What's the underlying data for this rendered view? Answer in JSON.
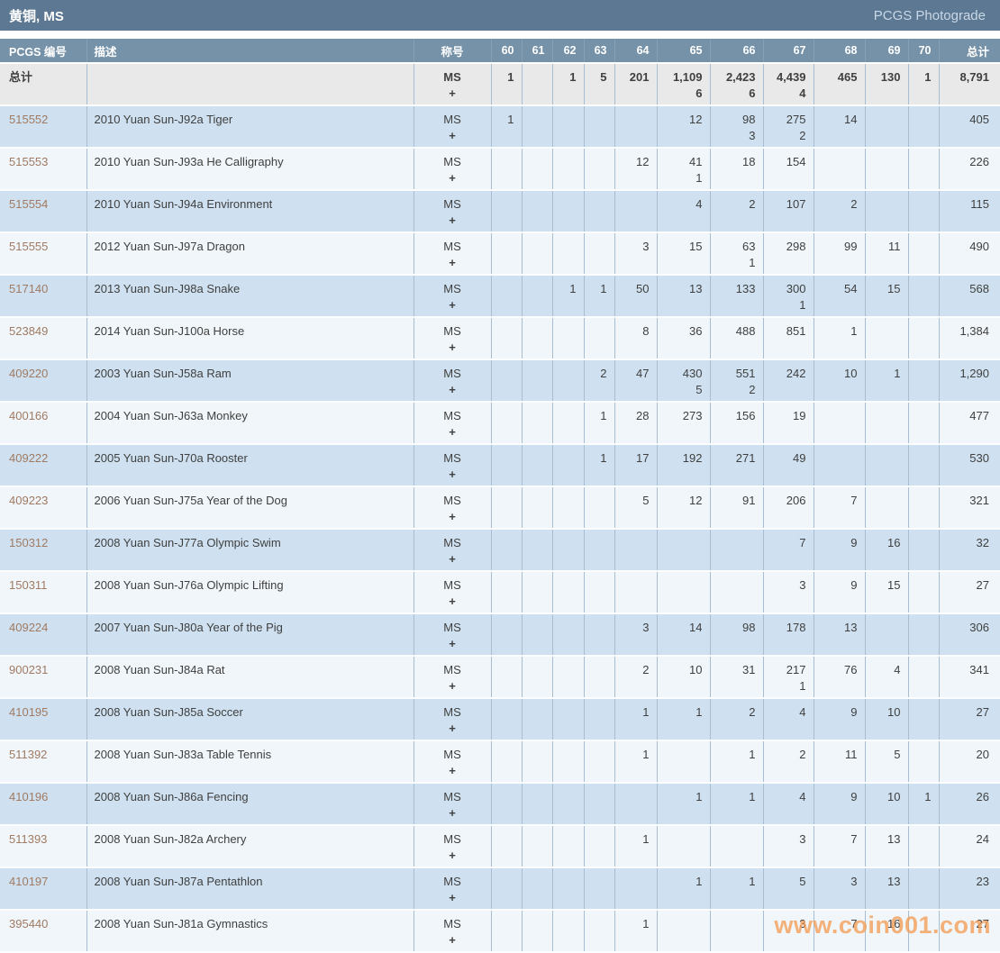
{
  "header": {
    "title": "黄铜, MS",
    "link_label": "PCGS Photograde"
  },
  "watermark": {
    "text": "www.coin001.com"
  },
  "colors": {
    "title_bar": "#5d7892",
    "column_header_bar": "#7692a8",
    "totals_row_bg": "#e9e9e9",
    "row_blue": "#cfe1f0",
    "row_light": "#f0f6fa",
    "grid_line": "#a8bed0",
    "pcgs_link": "#a07a62",
    "watermark": "#f39c54"
  },
  "table": {
    "columns": [
      "PCGS 编号",
      "描述",
      "称号",
      "60",
      "61",
      "62",
      "63",
      "64",
      "65",
      "66",
      "67",
      "68",
      "69",
      "70",
      "总计"
    ],
    "grade_keys": [
      "60",
      "61",
      "62",
      "63",
      "64",
      "65",
      "66",
      "67",
      "68",
      "69",
      "70"
    ],
    "designation": [
      "MS",
      "+"
    ],
    "totals": {
      "label": "总计",
      "grades": {
        "60": "1",
        "62": "1",
        "63": "5",
        "64": "201",
        "65": "1,109",
        "66": "2,423",
        "67": "4,439",
        "68": "465",
        "69": "130",
        "70": "1"
      },
      "plus": {
        "65": "6",
        "66": "6",
        "67": "4"
      },
      "total": "8,791"
    },
    "rows": [
      {
        "pcgs": "515552",
        "desc": "2010 Yuan Sun-J92a Tiger",
        "grades": {
          "60": "1",
          "65": "12",
          "66": "98",
          "67": "275",
          "68": "14"
        },
        "plus": {
          "66": "3",
          "67": "2"
        },
        "total": "405"
      },
      {
        "pcgs": "515553",
        "desc": "2010 Yuan Sun-J93a He Calligraphy",
        "grades": {
          "64": "12",
          "65": "41",
          "66": "18",
          "67": "154"
        },
        "plus": {
          "65": "1"
        },
        "total": "226"
      },
      {
        "pcgs": "515554",
        "desc": "2010 Yuan Sun-J94a Environment",
        "grades": {
          "65": "4",
          "66": "2",
          "67": "107",
          "68": "2"
        },
        "plus": {},
        "total": "115"
      },
      {
        "pcgs": "515555",
        "desc": "2012 Yuan Sun-J97a Dragon",
        "grades": {
          "64": "3",
          "65": "15",
          "66": "63",
          "67": "298",
          "68": "99",
          "69": "11"
        },
        "plus": {
          "66": "1"
        },
        "total": "490"
      },
      {
        "pcgs": "517140",
        "desc": "2013 Yuan Sun-J98a Snake",
        "grades": {
          "62": "1",
          "63": "1",
          "64": "50",
          "65": "13",
          "66": "133",
          "67": "300",
          "68": "54",
          "69": "15"
        },
        "plus": {
          "67": "1"
        },
        "total": "568"
      },
      {
        "pcgs": "523849",
        "desc": "2014 Yuan Sun-J100a Horse",
        "grades": {
          "64": "8",
          "65": "36",
          "66": "488",
          "67": "851",
          "68": "1"
        },
        "plus": {},
        "total": "1,384"
      },
      {
        "pcgs": "409220",
        "desc": "2003 Yuan Sun-J58a Ram",
        "grades": {
          "63": "2",
          "64": "47",
          "65": "430",
          "66": "551",
          "67": "242",
          "68": "10",
          "69": "1"
        },
        "plus": {
          "65": "5",
          "66": "2"
        },
        "total": "1,290"
      },
      {
        "pcgs": "400166",
        "desc": "2004 Yuan Sun-J63a Monkey",
        "grades": {
          "63": "1",
          "64": "28",
          "65": "273",
          "66": "156",
          "67": "19"
        },
        "plus": {},
        "total": "477"
      },
      {
        "pcgs": "409222",
        "desc": "2005 Yuan Sun-J70a Rooster",
        "grades": {
          "63": "1",
          "64": "17",
          "65": "192",
          "66": "271",
          "67": "49"
        },
        "plus": {},
        "total": "530"
      },
      {
        "pcgs": "409223",
        "desc": "2006 Yuan Sun-J75a Year of the Dog",
        "grades": {
          "64": "5",
          "65": "12",
          "66": "91",
          "67": "206",
          "68": "7"
        },
        "plus": {},
        "total": "321"
      },
      {
        "pcgs": "150312",
        "desc": "2008 Yuan Sun-J77a Olympic Swim",
        "grades": {
          "67": "7",
          "68": "9",
          "69": "16"
        },
        "plus": {},
        "total": "32"
      },
      {
        "pcgs": "150311",
        "desc": "2008 Yuan Sun-J76a Olympic Lifting",
        "grades": {
          "67": "3",
          "68": "9",
          "69": "15"
        },
        "plus": {},
        "total": "27"
      },
      {
        "pcgs": "409224",
        "desc": "2007 Yuan Sun-J80a Year of the Pig",
        "grades": {
          "64": "3",
          "65": "14",
          "66": "98",
          "67": "178",
          "68": "13"
        },
        "plus": {},
        "total": "306"
      },
      {
        "pcgs": "900231",
        "desc": "2008 Yuan Sun-J84a Rat",
        "grades": {
          "64": "2",
          "65": "10",
          "66": "31",
          "67": "217",
          "68": "76",
          "69": "4"
        },
        "plus": {
          "67": "1"
        },
        "total": "341"
      },
      {
        "pcgs": "410195",
        "desc": "2008 Yuan Sun-J85a Soccer",
        "grades": {
          "64": "1",
          "65": "1",
          "66": "2",
          "67": "4",
          "68": "9",
          "69": "10"
        },
        "plus": {},
        "total": "27"
      },
      {
        "pcgs": "511392",
        "desc": "2008 Yuan Sun-J83a Table Tennis",
        "grades": {
          "64": "1",
          "66": "1",
          "67": "2",
          "68": "11",
          "69": "5"
        },
        "plus": {},
        "total": "20"
      },
      {
        "pcgs": "410196",
        "desc": "2008 Yuan Sun-J86a Fencing",
        "grades": {
          "65": "1",
          "66": "1",
          "67": "4",
          "68": "9",
          "69": "10",
          "70": "1"
        },
        "plus": {},
        "total": "26"
      },
      {
        "pcgs": "511393",
        "desc": "2008 Yuan Sun-J82a Archery",
        "grades": {
          "64": "1",
          "67": "3",
          "68": "7",
          "69": "13"
        },
        "plus": {},
        "total": "24"
      },
      {
        "pcgs": "410197",
        "desc": "2008 Yuan Sun-J87a Pentathlon",
        "grades": {
          "65": "1",
          "66": "1",
          "67": "5",
          "68": "3",
          "69": "13"
        },
        "plus": {},
        "total": "23"
      },
      {
        "pcgs": "395440",
        "desc": "2008 Yuan Sun-J81a Gymnastics",
        "grades": {
          "64": "1",
          "67": "3",
          "68": "7",
          "69": "16"
        },
        "plus": {},
        "total": "27"
      }
    ]
  }
}
